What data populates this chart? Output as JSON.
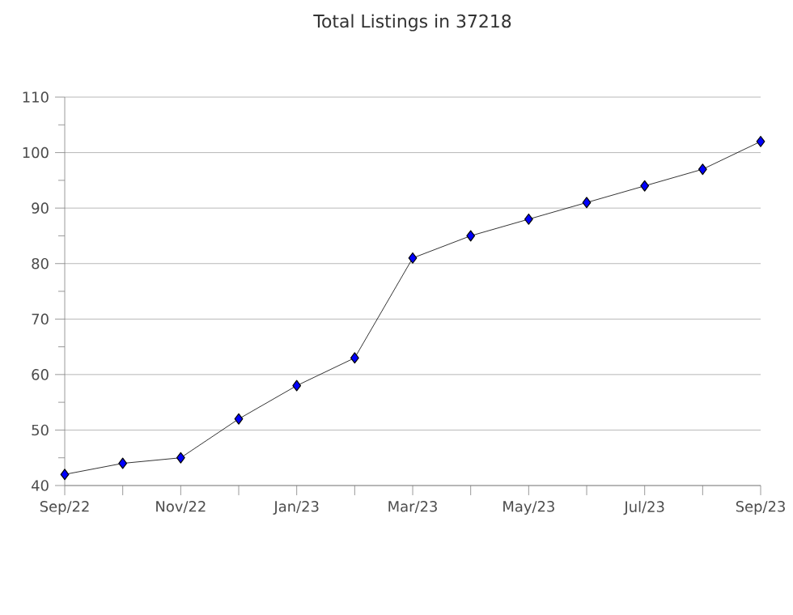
{
  "chart_data": {
    "type": "line",
    "title": "Total Listings in 37218",
    "categories": [
      "Sep/22",
      null,
      "Nov/22",
      null,
      "Jan/23",
      null,
      "Mar/23",
      null,
      "May/23",
      null,
      "Jul/23",
      null,
      "Sep/23"
    ],
    "series": [
      {
        "color": "#0000ff",
        "values": [
          42,
          44,
          45,
          52,
          58,
          63,
          81,
          85,
          88,
          91,
          94,
          97,
          102
        ]
      }
    ],
    "ylim": [
      40,
      110
    ],
    "yticks": [
      40,
      50,
      60,
      70,
      80,
      90,
      100,
      110
    ],
    "grid": "y",
    "marker": "diamond",
    "line_style": "solid"
  }
}
